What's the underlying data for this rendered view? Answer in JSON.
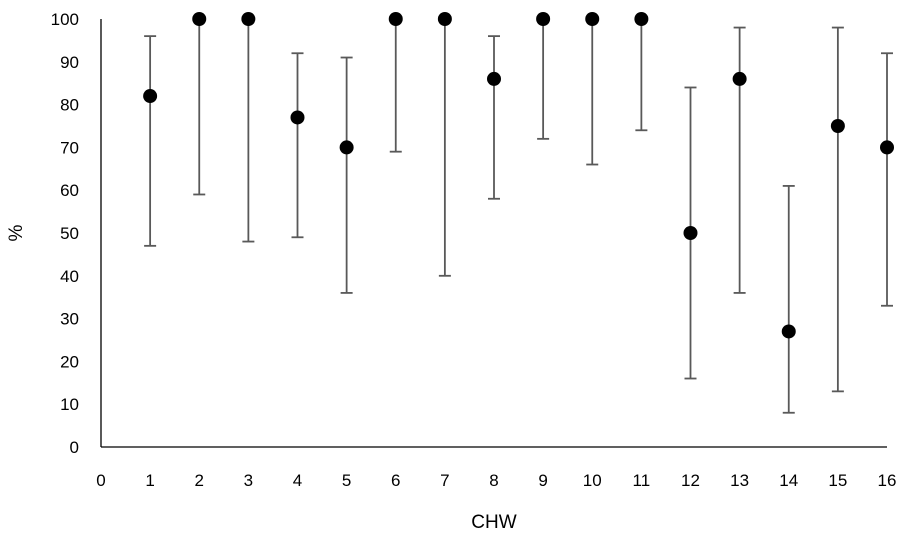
{
  "chart_data": {
    "type": "scatter",
    "title": "",
    "xlabel": "CHW",
    "ylabel": "%",
    "xlim": [
      0,
      16
    ],
    "ylim": [
      0,
      100
    ],
    "xticks": [
      "0",
      "1",
      "2",
      "3",
      "4",
      "5",
      "6",
      "7",
      "8",
      "9",
      "10",
      "11",
      "12",
      "13",
      "14",
      "15",
      "16"
    ],
    "yticks": [
      "0",
      "10",
      "20",
      "30",
      "40",
      "50",
      "60",
      "70",
      "80",
      "90",
      "100"
    ],
    "grid": false,
    "legend": "none",
    "points": [
      {
        "x": 1,
        "y": 82,
        "low": 47,
        "high": 96
      },
      {
        "x": 2,
        "y": 100,
        "low": 59,
        "high": 100
      },
      {
        "x": 3,
        "y": 100,
        "low": 48,
        "high": 100
      },
      {
        "x": 4,
        "y": 77,
        "low": 49,
        "high": 92
      },
      {
        "x": 5,
        "y": 70,
        "low": 36,
        "high": 91
      },
      {
        "x": 6,
        "y": 100,
        "low": 69,
        "high": 100
      },
      {
        "x": 7,
        "y": 100,
        "low": 40,
        "high": 100
      },
      {
        "x": 8,
        "y": 86,
        "low": 58,
        "high": 96
      },
      {
        "x": 9,
        "y": 100,
        "low": 72,
        "high": 100
      },
      {
        "x": 10,
        "y": 100,
        "low": 66,
        "high": 100
      },
      {
        "x": 11,
        "y": 100,
        "low": 74,
        "high": 100
      },
      {
        "x": 12,
        "y": 50,
        "low": 16,
        "high": 84
      },
      {
        "x": 13,
        "y": 86,
        "low": 36,
        "high": 98
      },
      {
        "x": 14,
        "y": 27,
        "low": 8,
        "high": 61
      },
      {
        "x": 15,
        "y": 75,
        "low": 13,
        "high": 98
      },
      {
        "x": 16,
        "y": 70,
        "low": 33,
        "high": 92
      }
    ],
    "colors": {
      "marker": "#000000",
      "errorbar": "#595959",
      "axis": "#000000"
    }
  }
}
